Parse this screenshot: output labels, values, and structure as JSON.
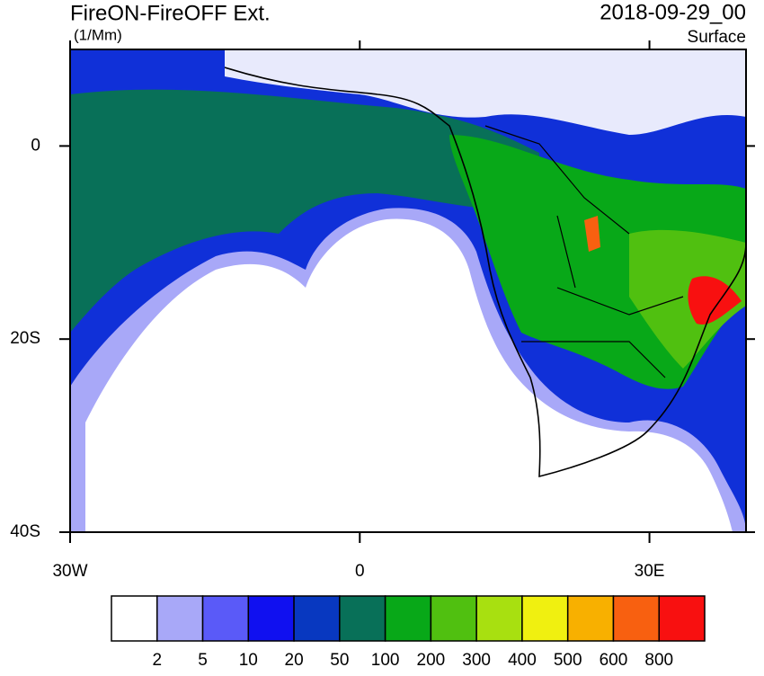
{
  "header": {
    "title": "FireON-FireOFF Ext.",
    "units": "(1/Mm)",
    "date": "2018-09-29_00",
    "level": "Surface"
  },
  "map": {
    "lonlim": [
      -30,
      40
    ],
    "latlim": [
      -40,
      10
    ],
    "lonticks": [
      {
        "value": -30,
        "label": "30W"
      },
      0,
      {
        "value": 30,
        "label": "30E"
      }
    ],
    "latticks": [
      0,
      {
        "value": -20,
        "label": "20S"
      },
      {
        "value": -40,
        "label": "40S"
      }
    ]
  },
  "colorbar": {
    "levels": [
      2,
      5,
      10,
      20,
      50,
      100,
      200,
      300,
      400,
      500,
      600,
      800
    ],
    "colors": [
      "#ffffff",
      "#a8a8f8",
      "#5a5af8",
      "#1010f0",
      "#0838c0",
      "#087058",
      "#08a818",
      "#50c010",
      "#a8e010",
      "#f0f010",
      "#f8b000",
      "#f86010",
      "#f81010"
    ]
  }
}
